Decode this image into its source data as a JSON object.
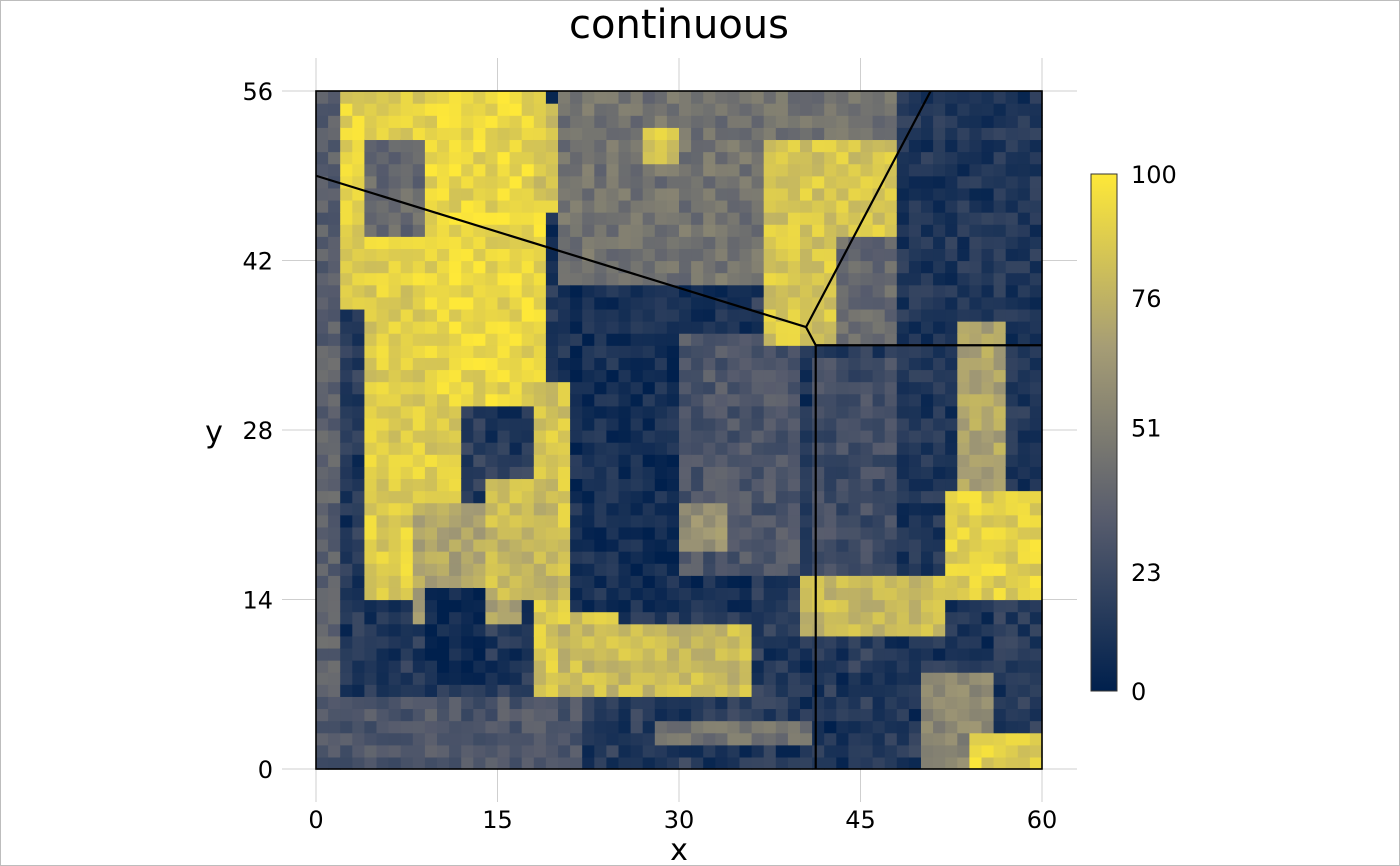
{
  "chart_data": {
    "type": "heatmap",
    "title": "continuous",
    "xlabel": "x",
    "ylabel": "y",
    "xlim": [
      0,
      60
    ],
    "ylim": [
      0,
      56
    ],
    "x_ticks": [
      "0",
      "15",
      "30",
      "45",
      "60"
    ],
    "y_ticks": [
      "0",
      "14",
      "28",
      "42",
      "56"
    ],
    "grid": true,
    "legend": {
      "position": "right",
      "min": 0,
      "max": 100,
      "ticks": [
        "0",
        "23",
        "51",
        "76",
        "100"
      ],
      "colors": [
        "#00204d",
        "#575c6d",
        "#a69d75",
        "#fee838"
      ]
    },
    "cell_size": 1,
    "value_regions": [
      {
        "shape": "box",
        "x": [
          0,
          2
        ],
        "y": [
          0,
          56
        ],
        "value": 35
      },
      {
        "shape": "box",
        "x": [
          2,
          10
        ],
        "y": [
          38,
          56
        ],
        "value": 90
      },
      {
        "shape": "box",
        "x": [
          4,
          9
        ],
        "y": [
          44,
          52
        ],
        "value": 40
      },
      {
        "shape": "box",
        "x": [
          4,
          12
        ],
        "y": [
          14,
          40
        ],
        "value": 88
      },
      {
        "shape": "box",
        "x": [
          9,
          19
        ],
        "y": [
          30,
          56
        ],
        "value": 92
      },
      {
        "shape": "box",
        "x": [
          18,
          20
        ],
        "y": [
          46,
          55
        ],
        "value": 85
      },
      {
        "shape": "box",
        "x": [
          18,
          25
        ],
        "y": [
          6,
          32
        ],
        "value": 85
      },
      {
        "shape": "box",
        "x": [
          8,
          17
        ],
        "y": [
          12,
          22
        ],
        "value": 70
      },
      {
        "shape": "box",
        "x": [
          9,
          14
        ],
        "y": [
          7,
          15
        ],
        "value": 3
      },
      {
        "shape": "box",
        "x": [
          14,
          20
        ],
        "y": [
          14,
          24
        ],
        "value": 80
      },
      {
        "shape": "box",
        "x": [
          20,
          36
        ],
        "y": [
          6,
          12
        ],
        "value": 80
      },
      {
        "shape": "box",
        "x": [
          20,
          48
        ],
        "y": [
          40,
          56
        ],
        "value": 45
      },
      {
        "shape": "box",
        "x": [
          27,
          30
        ],
        "y": [
          50,
          53
        ],
        "value": 85
      },
      {
        "shape": "box",
        "x": [
          21,
          36
        ],
        "y": [
          13,
          40
        ],
        "value": 8
      },
      {
        "shape": "box",
        "x": [
          30,
          40
        ],
        "y": [
          16,
          36
        ],
        "value": 30
      },
      {
        "shape": "box",
        "x": [
          30,
          34
        ],
        "y": [
          18,
          22
        ],
        "value": 60
      },
      {
        "shape": "box",
        "x": [
          37,
          49
        ],
        "y": [
          35,
          52
        ],
        "value": 85
      },
      {
        "shape": "box",
        "x": [
          43,
          51
        ],
        "y": [
          35,
          44
        ],
        "value": 40
      },
      {
        "shape": "box",
        "x": [
          48,
          60
        ],
        "y": [
          14,
          56
        ],
        "value": 12
      },
      {
        "shape": "box",
        "x": [
          53,
          57
        ],
        "y": [
          23,
          37
        ],
        "value": 70
      },
      {
        "shape": "box",
        "x": [
          52,
          60
        ],
        "y": [
          14,
          23
        ],
        "value": 90
      },
      {
        "shape": "box",
        "x": [
          40,
          52
        ],
        "y": [
          11,
          16
        ],
        "value": 80
      },
      {
        "shape": "box",
        "x": [
          41,
          48
        ],
        "y": [
          16,
          34
        ],
        "value": 25
      },
      {
        "shape": "box",
        "x": [
          0,
          22
        ],
        "y": [
          0,
          6
        ],
        "value": 30
      },
      {
        "shape": "box",
        "x": [
          28,
          41
        ],
        "y": [
          2,
          4
        ],
        "value": 45
      },
      {
        "shape": "box",
        "x": [
          50,
          56
        ],
        "y": [
          0,
          8
        ],
        "value": 55
      },
      {
        "shape": "box",
        "x": [
          54,
          60
        ],
        "y": [
          0,
          3
        ],
        "value": 90
      }
    ],
    "boundary_lines": [
      [
        [
          0,
          49
        ],
        [
          40.5,
          36.5
        ],
        [
          50.8,
          56
        ]
      ],
      [
        [
          40.5,
          36.5
        ],
        [
          41.3,
          35
        ],
        [
          60,
          35
        ]
      ],
      [
        [
          41.3,
          35
        ],
        [
          41.3,
          0
        ]
      ]
    ]
  }
}
